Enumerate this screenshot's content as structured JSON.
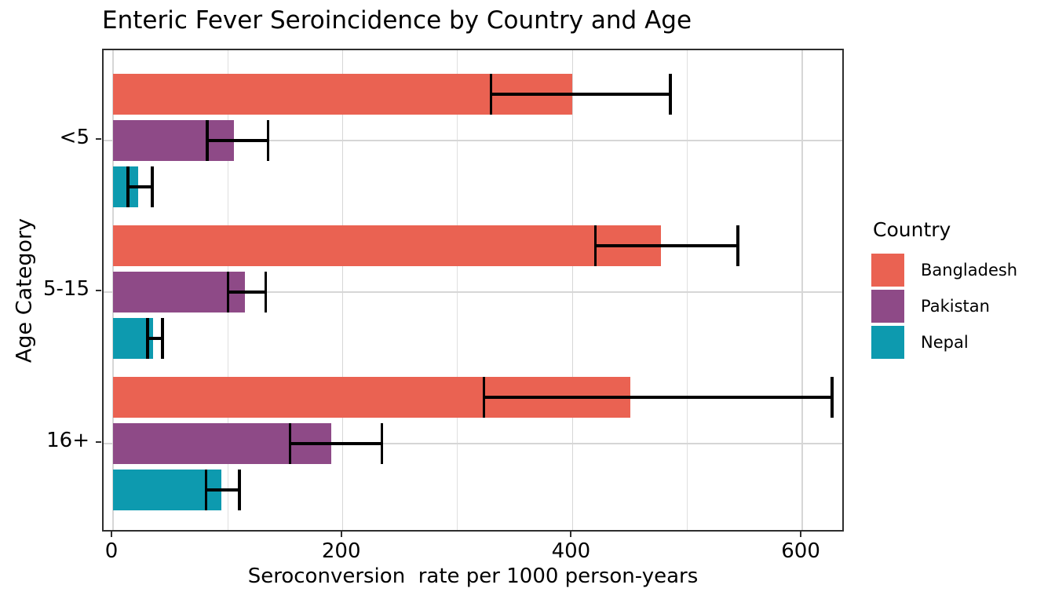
{
  "figure": {
    "title": "Enteric Fever Seroincidence by Country and Age",
    "x_axis_label": "Seroconversion  rate per 1000 person-years",
    "y_axis_label": "Age Category",
    "legend_title": "Country"
  },
  "colors": {
    "bangladesh": "#EA6252",
    "pakistan": "#8E4A87",
    "nepal": "#0D9AAF",
    "gridline": "#d6d6d6",
    "panel_border": "#2e2e2e",
    "error_bar": "#000000",
    "background": "#ffffff"
  },
  "chart_data": {
    "type": "bar",
    "orientation": "horizontal",
    "title": "Enteric Fever Seroincidence by Country and Age",
    "xlabel": "Seroconversion  rate per 1000 person-years",
    "ylabel": "Age Category",
    "categories": [
      "<5",
      "5-15",
      "16+"
    ],
    "series": [
      {
        "name": "Bangladesh",
        "color": "#EA6252",
        "values": [
          400,
          477,
          450
        ],
        "ci_low": [
          329,
          420,
          323
        ],
        "ci_high": [
          485,
          544,
          626
        ]
      },
      {
        "name": "Pakistan",
        "color": "#8E4A87",
        "values": [
          105,
          115,
          190
        ],
        "ci_low": [
          82,
          100,
          154
        ],
        "ci_high": [
          135,
          133,
          234
        ]
      },
      {
        "name": "Nepal",
        "color": "#0D9AAF",
        "values": [
          22,
          35,
          94
        ],
        "ci_low": [
          13,
          30,
          81
        ],
        "ci_high": [
          34,
          43,
          110
        ]
      }
    ],
    "x_ticks": [
      0,
      200,
      400,
      600
    ],
    "x_range": [
      0,
      638
    ],
    "gridline_step": 100,
    "grid": true,
    "error_bars": true,
    "legend": {
      "title": "Country",
      "entries": [
        "Bangladesh",
        "Pakistan",
        "Nepal"
      ],
      "position": "right"
    }
  }
}
